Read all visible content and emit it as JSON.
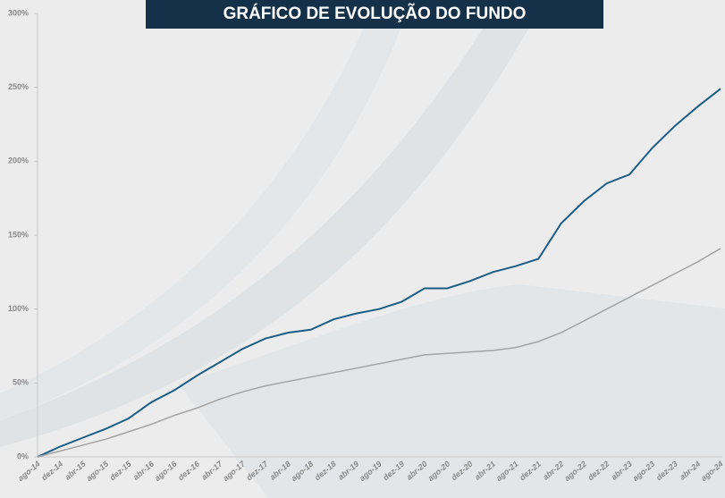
{
  "chart_data": {
    "type": "line",
    "title": "GRÁFICO DE EVOLUÇÃO DO FUNDO",
    "categories": [
      "ago-14",
      "dez-14",
      "abr-15",
      "ago-15",
      "dez-15",
      "abr-16",
      "ago-16",
      "dez-16",
      "abr-17",
      "ago-17",
      "dez-17",
      "abr-18",
      "ago-18",
      "dez-18",
      "abr-19",
      "ago-19",
      "dez-19",
      "abr-20",
      "ago-20",
      "dez-20",
      "abr-21",
      "ago-21",
      "dez-21",
      "abr-22",
      "ago-22",
      "dez-22",
      "abr-23",
      "ago-23",
      "dez-23",
      "abr-24",
      "ago-24"
    ],
    "series": [
      {
        "color": "#1b5e85",
        "values": [
          0,
          7,
          13,
          19,
          26,
          37,
          45,
          55,
          64,
          73,
          80,
          84,
          86,
          93,
          97,
          100,
          105,
          114,
          114,
          119,
          125,
          129,
          134,
          158,
          173,
          185,
          191,
          209,
          224,
          237,
          249
        ]
      },
      {
        "color": "#a3a3a3",
        "values": [
          0,
          4,
          8,
          12,
          17,
          22,
          28,
          33,
          39,
          44,
          48,
          51,
          54,
          57,
          60,
          63,
          66,
          69,
          70,
          71,
          72,
          74,
          78,
          84,
          92,
          100,
          108,
          116,
          124,
          132,
          141
        ]
      }
    ],
    "ylim": [
      0,
      300
    ],
    "yticks": [
      {
        "value": 0,
        "label": "0%"
      },
      {
        "value": 50,
        "label": "50%"
      },
      {
        "value": 100,
        "label": "100%"
      },
      {
        "value": 150,
        "label": "150%"
      },
      {
        "value": 200,
        "label": "200%"
      },
      {
        "value": 250,
        "label": "250%"
      },
      {
        "value": 300,
        "label": "300%"
      }
    ]
  }
}
